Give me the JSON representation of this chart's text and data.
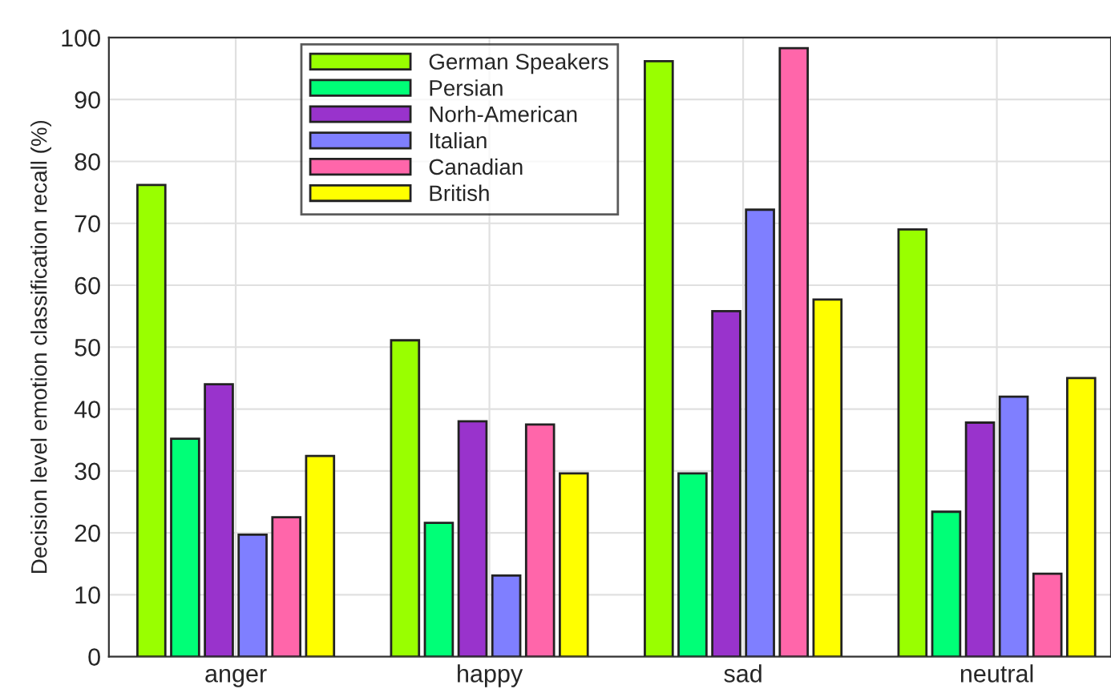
{
  "chart_data": {
    "type": "bar",
    "ylabel": "Decision level emotion classification recall (%)",
    "categories": [
      "anger",
      "happy",
      "sad",
      "neutral"
    ],
    "series": [
      {
        "name": "German Speakers",
        "color": "#99ff00",
        "values": [
          76.2,
          51.1,
          96.2,
          69
        ]
      },
      {
        "name": "Persian",
        "color": "#00ff77",
        "values": [
          35.2,
          21.6,
          29.6,
          23.4
        ]
      },
      {
        "name": "Norh-American",
        "color": "#9933cc",
        "values": [
          44,
          38,
          55.8,
          37.8
        ]
      },
      {
        "name": "Italian",
        "color": "#7f7fff",
        "values": [
          19.7,
          13.1,
          72.2,
          42
        ]
      },
      {
        "name": "Canadian",
        "color": "#ff66aa",
        "values": [
          22.5,
          37.5,
          98.3,
          13.4
        ]
      },
      {
        "name": "British",
        "color": "#ffff00",
        "values": [
          32.4,
          29.6,
          57.7,
          45
        ]
      }
    ],
    "ylim": [
      0,
      100
    ],
    "yticks": [
      0,
      10,
      20,
      30,
      40,
      50,
      60,
      70,
      80,
      90,
      100
    ],
    "grid": true,
    "legend": "top"
  }
}
